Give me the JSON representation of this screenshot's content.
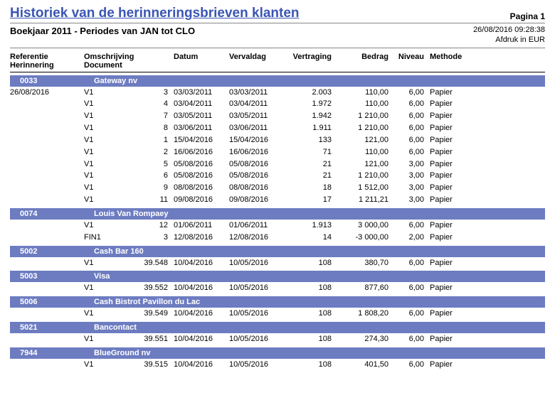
{
  "header": {
    "title": "Historiek van de herinneringsbrieven klanten",
    "page_label": "Pagina 1",
    "subtitle": "Boekjaar 2011 - Periodes van JAN tot CLO",
    "timestamp": "26/08/2016 09:28:38",
    "currency_note": "Afdruk in EUR"
  },
  "columns": {
    "referentie": "Referentie",
    "herinnering": "Herinnering",
    "omschrijving": "Omschrijving",
    "document": "Document",
    "datum": "Datum",
    "vervaldag": "Vervaldag",
    "vertraging": "Vertraging",
    "bedrag": "Bedrag",
    "niveau": "Niveau",
    "methode": "Methode"
  },
  "groups": [
    {
      "ref": "0033",
      "name": "Gateway nv",
      "date_left": "26/08/2016",
      "rows": [
        {
          "herin": "V1",
          "doc": "3",
          "datum": "03/03/2011",
          "verval": "03/03/2011",
          "vertr": "2.003",
          "bedrag": "110,00",
          "niveau": "6,00",
          "meth": "Papier"
        },
        {
          "herin": "V1",
          "doc": "4",
          "datum": "03/04/2011",
          "verval": "03/04/2011",
          "vertr": "1.972",
          "bedrag": "110,00",
          "niveau": "6,00",
          "meth": "Papier"
        },
        {
          "herin": "V1",
          "doc": "7",
          "datum": "03/05/2011",
          "verval": "03/05/2011",
          "vertr": "1.942",
          "bedrag": "1 210,00",
          "niveau": "6,00",
          "meth": "Papier"
        },
        {
          "herin": "V1",
          "doc": "8",
          "datum": "03/06/2011",
          "verval": "03/06/2011",
          "vertr": "1.911",
          "bedrag": "1 210,00",
          "niveau": "6,00",
          "meth": "Papier"
        },
        {
          "herin": "V1",
          "doc": "1",
          "datum": "15/04/2016",
          "verval": "15/04/2016",
          "vertr": "133",
          "bedrag": "121,00",
          "niveau": "6,00",
          "meth": "Papier"
        },
        {
          "herin": "V1",
          "doc": "2",
          "datum": "16/06/2016",
          "verval": "16/06/2016",
          "vertr": "71",
          "bedrag": "110,00",
          "niveau": "6,00",
          "meth": "Papier"
        },
        {
          "herin": "V1",
          "doc": "5",
          "datum": "05/08/2016",
          "verval": "05/08/2016",
          "vertr": "21",
          "bedrag": "121,00",
          "niveau": "3,00",
          "meth": "Papier"
        },
        {
          "herin": "V1",
          "doc": "6",
          "datum": "05/08/2016",
          "verval": "05/08/2016",
          "vertr": "21",
          "bedrag": "1 210,00",
          "niveau": "3,00",
          "meth": "Papier"
        },
        {
          "herin": "V1",
          "doc": "9",
          "datum": "08/08/2016",
          "verval": "08/08/2016",
          "vertr": "18",
          "bedrag": "1 512,00",
          "niveau": "3,00",
          "meth": "Papier"
        },
        {
          "herin": "V1",
          "doc": "11",
          "datum": "09/08/2016",
          "verval": "09/08/2016",
          "vertr": "17",
          "bedrag": "1 211,21",
          "niveau": "3,00",
          "meth": "Papier"
        }
      ]
    },
    {
      "ref": "0074",
      "name": "Louis Van Rompaey",
      "rows": [
        {
          "herin": "V1",
          "doc": "12",
          "datum": "01/06/2011",
          "verval": "01/06/2011",
          "vertr": "1.913",
          "bedrag": "3 000,00",
          "niveau": "6,00",
          "meth": "Papier"
        },
        {
          "herin": "FIN1",
          "doc": "3",
          "datum": "12/08/2016",
          "verval": "12/08/2016",
          "vertr": "14",
          "bedrag": "-3 000,00",
          "niveau": "2,00",
          "meth": "Papier"
        }
      ]
    },
    {
      "ref": "5002",
      "name": "Cash Bar 160",
      "rows": [
        {
          "herin": "V1",
          "doc": "39.548",
          "datum": "10/04/2016",
          "verval": "10/05/2016",
          "vertr": "108",
          "bedrag": "380,70",
          "niveau": "6,00",
          "meth": "Papier"
        }
      ]
    },
    {
      "ref": "5003",
      "name": "Visa",
      "rows": [
        {
          "herin": "V1",
          "doc": "39.552",
          "datum": "10/04/2016",
          "verval": "10/05/2016",
          "vertr": "108",
          "bedrag": "877,60",
          "niveau": "6,00",
          "meth": "Papier"
        }
      ]
    },
    {
      "ref": "5006",
      "name": "Cash Bistrot Pavillon du Lac",
      "rows": [
        {
          "herin": "V1",
          "doc": "39.549",
          "datum": "10/04/2016",
          "verval": "10/05/2016",
          "vertr": "108",
          "bedrag": "1 808,20",
          "niveau": "6,00",
          "meth": "Papier"
        }
      ]
    },
    {
      "ref": "5021",
      "name": "Bancontact",
      "rows": [
        {
          "herin": "V1",
          "doc": "39.551",
          "datum": "10/04/2016",
          "verval": "10/05/2016",
          "vertr": "108",
          "bedrag": "274,30",
          "niveau": "6,00",
          "meth": "Papier"
        }
      ]
    },
    {
      "ref": "7944",
      "name": "BlueGround nv",
      "rows": [
        {
          "herin": "V1",
          "doc": "39.515",
          "datum": "10/04/2016",
          "verval": "10/05/2016",
          "vertr": "108",
          "bedrag": "401,50",
          "niveau": "6,00",
          "meth": "Papier"
        }
      ]
    }
  ]
}
